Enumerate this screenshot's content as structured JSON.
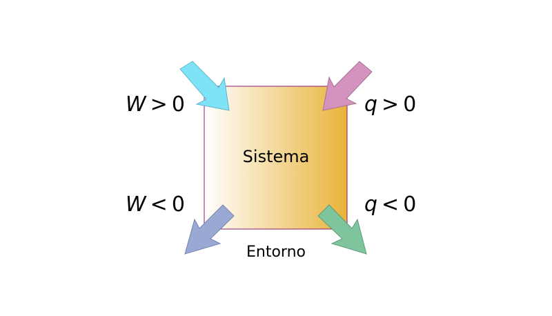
{
  "system": {
    "label": "Sistema"
  },
  "surroundings": {
    "label": "Entorno"
  },
  "labels": {
    "work_in": {
      "variable": "W",
      "operator": ">",
      "value": "0"
    },
    "heat_in": {
      "variable": "q",
      "operator": ">",
      "value": "0"
    },
    "work_out": {
      "variable": "W",
      "operator": "<",
      "value": "0"
    },
    "heat_out": {
      "variable": "q",
      "operator": "<",
      "value": "0"
    }
  },
  "colors": {
    "system_gradient_start": "#ffffff",
    "system_gradient_end": "#e8b33a",
    "system_border": "#8a1a6e",
    "work_in_arrow": "#7fe3f7",
    "heat_in_arrow": "#d393be",
    "work_out_arrow": "#9aa8d4",
    "heat_out_arrow": "#7ec49c"
  },
  "arrows": [
    {
      "name": "work-in-arrow",
      "direction": "into-system",
      "color_key": "work_in_arrow"
    },
    {
      "name": "heat-in-arrow",
      "direction": "into-system",
      "color_key": "heat_in_arrow"
    },
    {
      "name": "work-out-arrow",
      "direction": "out-of-system",
      "color_key": "work_out_arrow"
    },
    {
      "name": "heat-out-arrow",
      "direction": "out-of-system",
      "color_key": "heat_out_arrow"
    }
  ]
}
